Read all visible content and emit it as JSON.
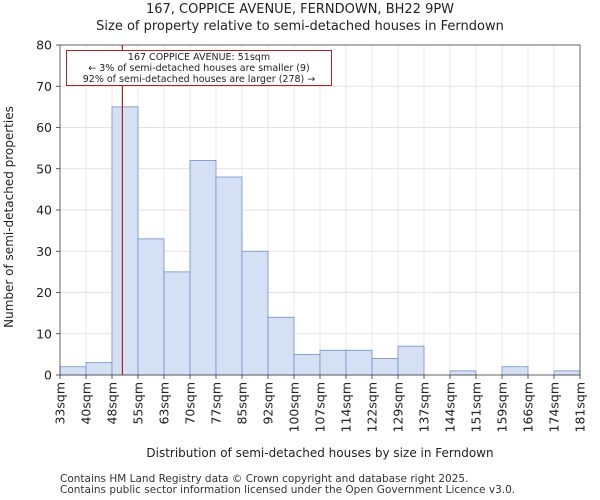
{
  "chart_data": {
    "type": "histogram",
    "title": "167, COPPICE AVENUE, FERNDOWN, BH22 9PW",
    "subtitle": "Size of property relative to semi-detached houses in Ferndown",
    "xlabel": "Distribution of semi-detached houses by size in Ferndown",
    "ylabel": "Number of semi-detached properties",
    "ylim": [
      0,
      80
    ],
    "yticks": [
      0,
      10,
      20,
      30,
      40,
      50,
      60,
      70,
      80
    ],
    "categories": [
      "33sqm",
      "40sqm",
      "48sqm",
      "55sqm",
      "63sqm",
      "70sqm",
      "77sqm",
      "85sqm",
      "92sqm",
      "100sqm",
      "107sqm",
      "114sqm",
      "122sqm",
      "129sqm",
      "137sqm",
      "144sqm",
      "151sqm",
      "159sqm",
      "166sqm",
      "174sqm",
      "181sqm"
    ],
    "values": [
      2,
      3,
      65,
      33,
      25,
      52,
      48,
      30,
      14,
      5,
      6,
      6,
      4,
      7,
      0,
      1,
      0,
      2,
      0,
      1
    ],
    "marker": {
      "position_index": 2.4,
      "label": "167 COPPICE AVENUE: 51sqm"
    },
    "annotation": {
      "line1": "167 COPPICE AVENUE: 51sqm",
      "line2": "← 3% of semi-detached houses are smaller (9)",
      "line3": "92% of semi-detached houses are larger (278) →"
    },
    "bar_color": "#d6e0f5",
    "bar_edge_color": "#6f8fc7",
    "marker_color": "#b22222"
  },
  "footer": {
    "line1": "Contains HM Land Registry data © Crown copyright and database right 2025.",
    "line2": "Contains public sector information licensed under the Open Government Licence v3.0."
  }
}
